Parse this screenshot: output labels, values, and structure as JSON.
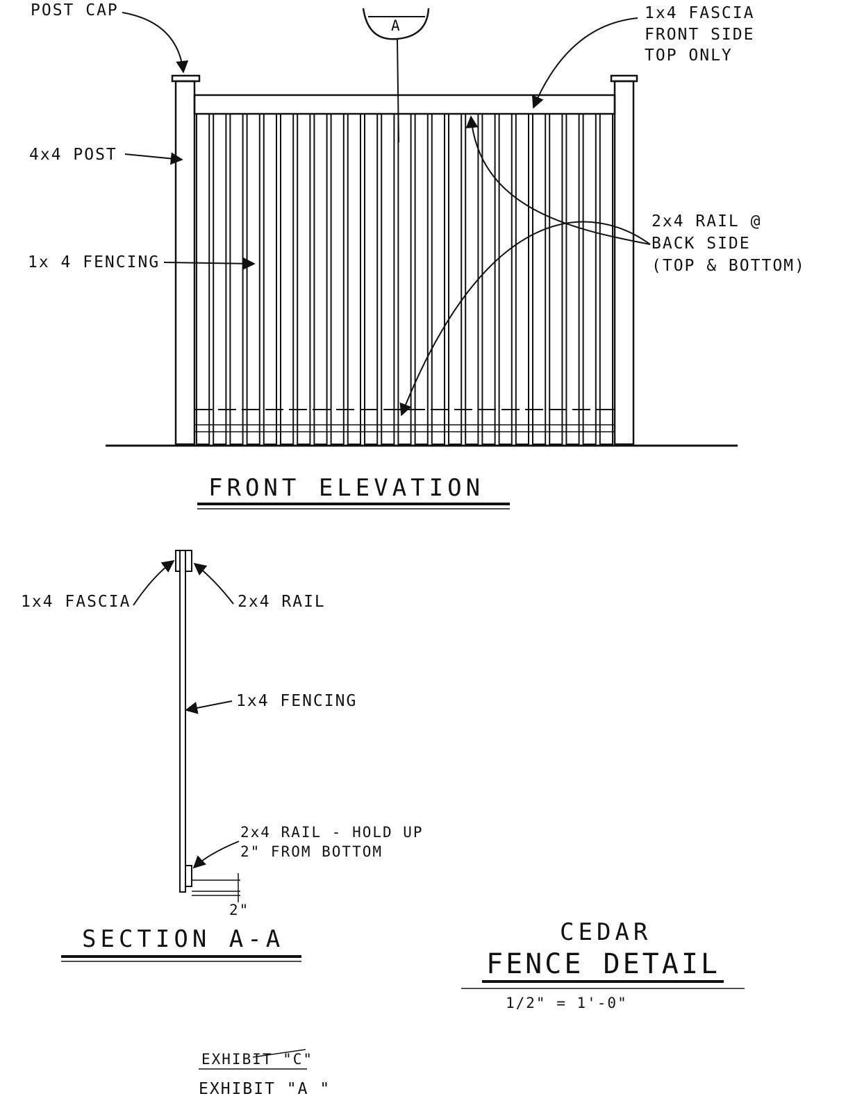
{
  "drawing": {
    "callouts": {
      "post_cap": "POST CAP",
      "fascia_front": [
        "1x4 FASCIA",
        "FRONT SIDE",
        "TOP ONLY"
      ],
      "post": "4x4 POST",
      "fencing": "1x 4 FENCING",
      "rail_back": [
        "2x4 RAIL @",
        "BACK SIDE",
        "(TOP & BOTTOM)"
      ],
      "section_marker": "A"
    },
    "front_elevation_title": "FRONT ELEVATION",
    "section": {
      "fascia": "1x4 FASCIA",
      "rail": "2x4 RAIL",
      "fencing": "1x4 FENCING",
      "rail_bottom": [
        "2x4 RAIL - HOLD UP",
        "2\" FROM BOTTOM"
      ],
      "dimension": "2\"",
      "title": "SECTION A-A"
    },
    "detail_title": [
      "CEDAR",
      "FENCE DETAIL"
    ],
    "scale": "1/2\" = 1'-0\"",
    "exhibit": [
      "EXHIBIT \"C\"",
      "EXHIBIT \"A \""
    ]
  }
}
